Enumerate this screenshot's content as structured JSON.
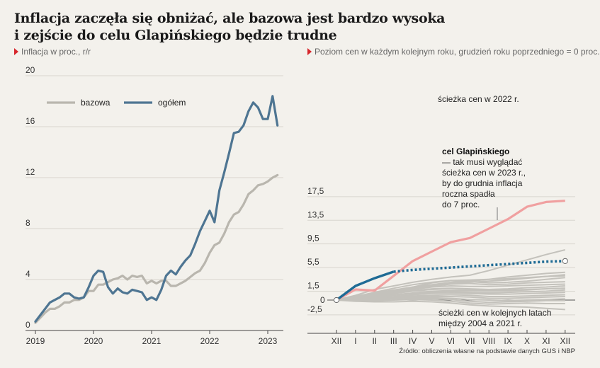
{
  "title_line1": "Inflacja zaczęła się obniżać, ale bazowa jest bardzo wysoka",
  "title_line2": "i zejście do celu Glapińskiego będzie trudne",
  "left_subtitle": "Inflacja w proc., r/r",
  "right_subtitle": "Poziom cen w każdym kolejnym roku, grudzień roku poprzedniego = 0 proc.",
  "source": "Źródło: obliczenia własne na podstawie danych GUS i NBP",
  "colors": {
    "bazowa": "#b9b6ae",
    "ogolem": "#4e7592",
    "path_2022": "#f0a0a0",
    "target": "#1f6b95",
    "history": "#c4c2bc",
    "accent": "#d7262c"
  },
  "chart_data": [
    {
      "type": "line",
      "ylim": [
        0,
        20
      ],
      "yticks": [
        "0",
        "4",
        "8",
        "12",
        "16",
        "20"
      ],
      "xticks": [
        "2019",
        "2020",
        "2021",
        "2022",
        "2023"
      ],
      "legend": [
        "bazowa",
        "ogółem"
      ],
      "series": [
        {
          "name": "bazowa",
          "start": "2019-01",
          "values": [
            0.6,
            1.0,
            1.4,
            1.7,
            1.7,
            1.9,
            2.2,
            2.2,
            2.4,
            2.4,
            2.6,
            3.1,
            3.1,
            3.6,
            3.6,
            3.8,
            4.0,
            4.1,
            4.3,
            4.0,
            4.3,
            4.2,
            4.3,
            3.7,
            3.9,
            3.7,
            3.9,
            3.9,
            3.5,
            3.5,
            3.7,
            3.9,
            4.2,
            4.5,
            4.7,
            5.3,
            6.1,
            6.7,
            6.9,
            7.6,
            8.5,
            9.1,
            9.3,
            9.9,
            10.7,
            11.0,
            11.4,
            11.5,
            11.7,
            12.0,
            12.2
          ]
        },
        {
          "name": "ogółem",
          "start": "2019-01",
          "values": [
            0.7,
            1.2,
            1.7,
            2.2,
            2.4,
            2.6,
            2.9,
            2.9,
            2.6,
            2.5,
            2.6,
            3.4,
            4.3,
            4.7,
            4.6,
            3.4,
            2.9,
            3.3,
            3.0,
            2.9,
            3.2,
            3.1,
            3.0,
            2.4,
            2.6,
            2.4,
            3.2,
            4.3,
            4.7,
            4.4,
            5.0,
            5.5,
            5.9,
            6.8,
            7.8,
            8.6,
            9.4,
            8.5,
            11.0,
            12.4,
            13.9,
            15.5,
            15.6,
            16.1,
            17.2,
            17.9,
            17.5,
            16.6,
            16.6,
            18.4,
            16.1
          ]
        }
      ]
    },
    {
      "type": "line",
      "ylim": [
        -2.5,
        17.5
      ],
      "yticks": [
        "17,5",
        "13,5",
        "9,5",
        "5,5",
        "1,5",
        "0",
        "-2,5"
      ],
      "categories": [
        "XII",
        "I",
        "II",
        "III",
        "IV",
        "V",
        "VI",
        "VII",
        "VIII",
        "IX",
        "X",
        "XI",
        "XII"
      ],
      "series": [
        {
          "name": "ścieżka cen w 2022 r.",
          "values": [
            0,
            1.8,
            1.6,
            4.1,
            6.6,
            8.2,
            9.8,
            10.5,
            12.1,
            13.7,
            15.8,
            16.6,
            16.8
          ]
        },
        {
          "name": "cel Glapińskiego",
          "values": [
            0,
            2.4,
            3.7,
            4.8,
            5.1,
            5.3,
            5.5,
            5.7,
            5.9,
            6.1,
            6.3,
            6.5,
            6.6
          ]
        }
      ],
      "historical_paths": [
        [
          0,
          0.8,
          1.8,
          2.4,
          3.0,
          3.5,
          3.9,
          4.2,
          5.0,
          5.9,
          6.8,
          7.7,
          8.5
        ],
        [
          0,
          0.6,
          1.2,
          1.7,
          2.2,
          2.6,
          3.0,
          3.2,
          3.5,
          3.9,
          4.2,
          4.5,
          4.7
        ],
        [
          0,
          0.7,
          1.1,
          1.5,
          2.0,
          2.5,
          2.8,
          3.0,
          3.2,
          3.4,
          3.7,
          4.0,
          4.3
        ],
        [
          0,
          0.5,
          1.0,
          1.5,
          2.2,
          2.9,
          3.3,
          3.1,
          2.9,
          3.0,
          3.2,
          3.5,
          3.8
        ],
        [
          0,
          0.5,
          0.9,
          1.3,
          1.9,
          2.3,
          2.7,
          2.8,
          2.6,
          2.7,
          2.9,
          3.0,
          3.1
        ],
        [
          0,
          0.4,
          0.9,
          1.4,
          1.8,
          2.2,
          2.4,
          2.3,
          2.3,
          2.4,
          2.5,
          2.6,
          2.7
        ],
        [
          0,
          0.4,
          0.8,
          1.2,
          1.6,
          1.9,
          2.0,
          1.9,
          1.8,
          1.9,
          2.1,
          2.2,
          2.4
        ],
        [
          0,
          0.3,
          0.6,
          0.9,
          1.2,
          1.5,
          1.6,
          1.6,
          1.5,
          1.6,
          1.7,
          1.9,
          2.0
        ],
        [
          0,
          0.3,
          0.5,
          0.8,
          1.1,
          1.3,
          1.4,
          1.3,
          1.2,
          1.3,
          1.4,
          1.5,
          1.7
        ],
        [
          0,
          0.2,
          0.4,
          0.6,
          0.9,
          1.1,
          1.2,
          1.1,
          1.0,
          1.0,
          1.1,
          1.2,
          1.3
        ],
        [
          0,
          0.2,
          0.4,
          0.5,
          0.7,
          0.8,
          0.9,
          0.8,
          0.6,
          0.6,
          0.7,
          0.8,
          0.9
        ],
        [
          0,
          0.1,
          0.2,
          0.4,
          0.5,
          0.6,
          0.6,
          0.5,
          0.3,
          0.3,
          0.4,
          0.5,
          0.6
        ],
        [
          0,
          0.1,
          0.2,
          0.3,
          0.4,
          0.4,
          0.3,
          0.1,
          0.0,
          -0.1,
          0.0,
          0.1,
          0.2
        ],
        [
          0,
          0.0,
          0.1,
          0.2,
          0.3,
          0.2,
          0.1,
          -0.2,
          -0.4,
          -0.3,
          -0.2,
          -0.1,
          -0.1
        ],
        [
          0,
          -0.1,
          -0.1,
          0.0,
          0.1,
          0.0,
          -0.2,
          -0.5,
          -0.7,
          -0.6,
          -0.5,
          -0.6,
          -0.6
        ],
        [
          0,
          -0.2,
          -0.3,
          -0.3,
          -0.2,
          -0.3,
          -0.5,
          -0.8,
          -1.0,
          -1.1,
          -1.2,
          -1.4,
          -1.6
        ],
        [
          0,
          0.6,
          1.3,
          2.0,
          2.6,
          3.0,
          3.3,
          3.4,
          3.5,
          3.6,
          3.8,
          4.0,
          4.1
        ],
        [
          0,
          0.3,
          0.7,
          1.1,
          1.5,
          1.8,
          1.9,
          1.8,
          1.7,
          1.7,
          1.8,
          1.9,
          2.0
        ]
      ],
      "annotations": {
        "path_2022": "ścieżka cen w 2022 r.",
        "target_title": "cel Glapińskiego",
        "target_lines": [
          "— tak musi wyglądać",
          "ścieżka cen w 2023 r.,",
          "by do grudnia inflacja",
          "roczna spadła",
          "do 7 proc."
        ],
        "history_lines": [
          "ścieżki cen w kolejnych latach",
          "między 2004 a 2021 r."
        ]
      }
    }
  ]
}
